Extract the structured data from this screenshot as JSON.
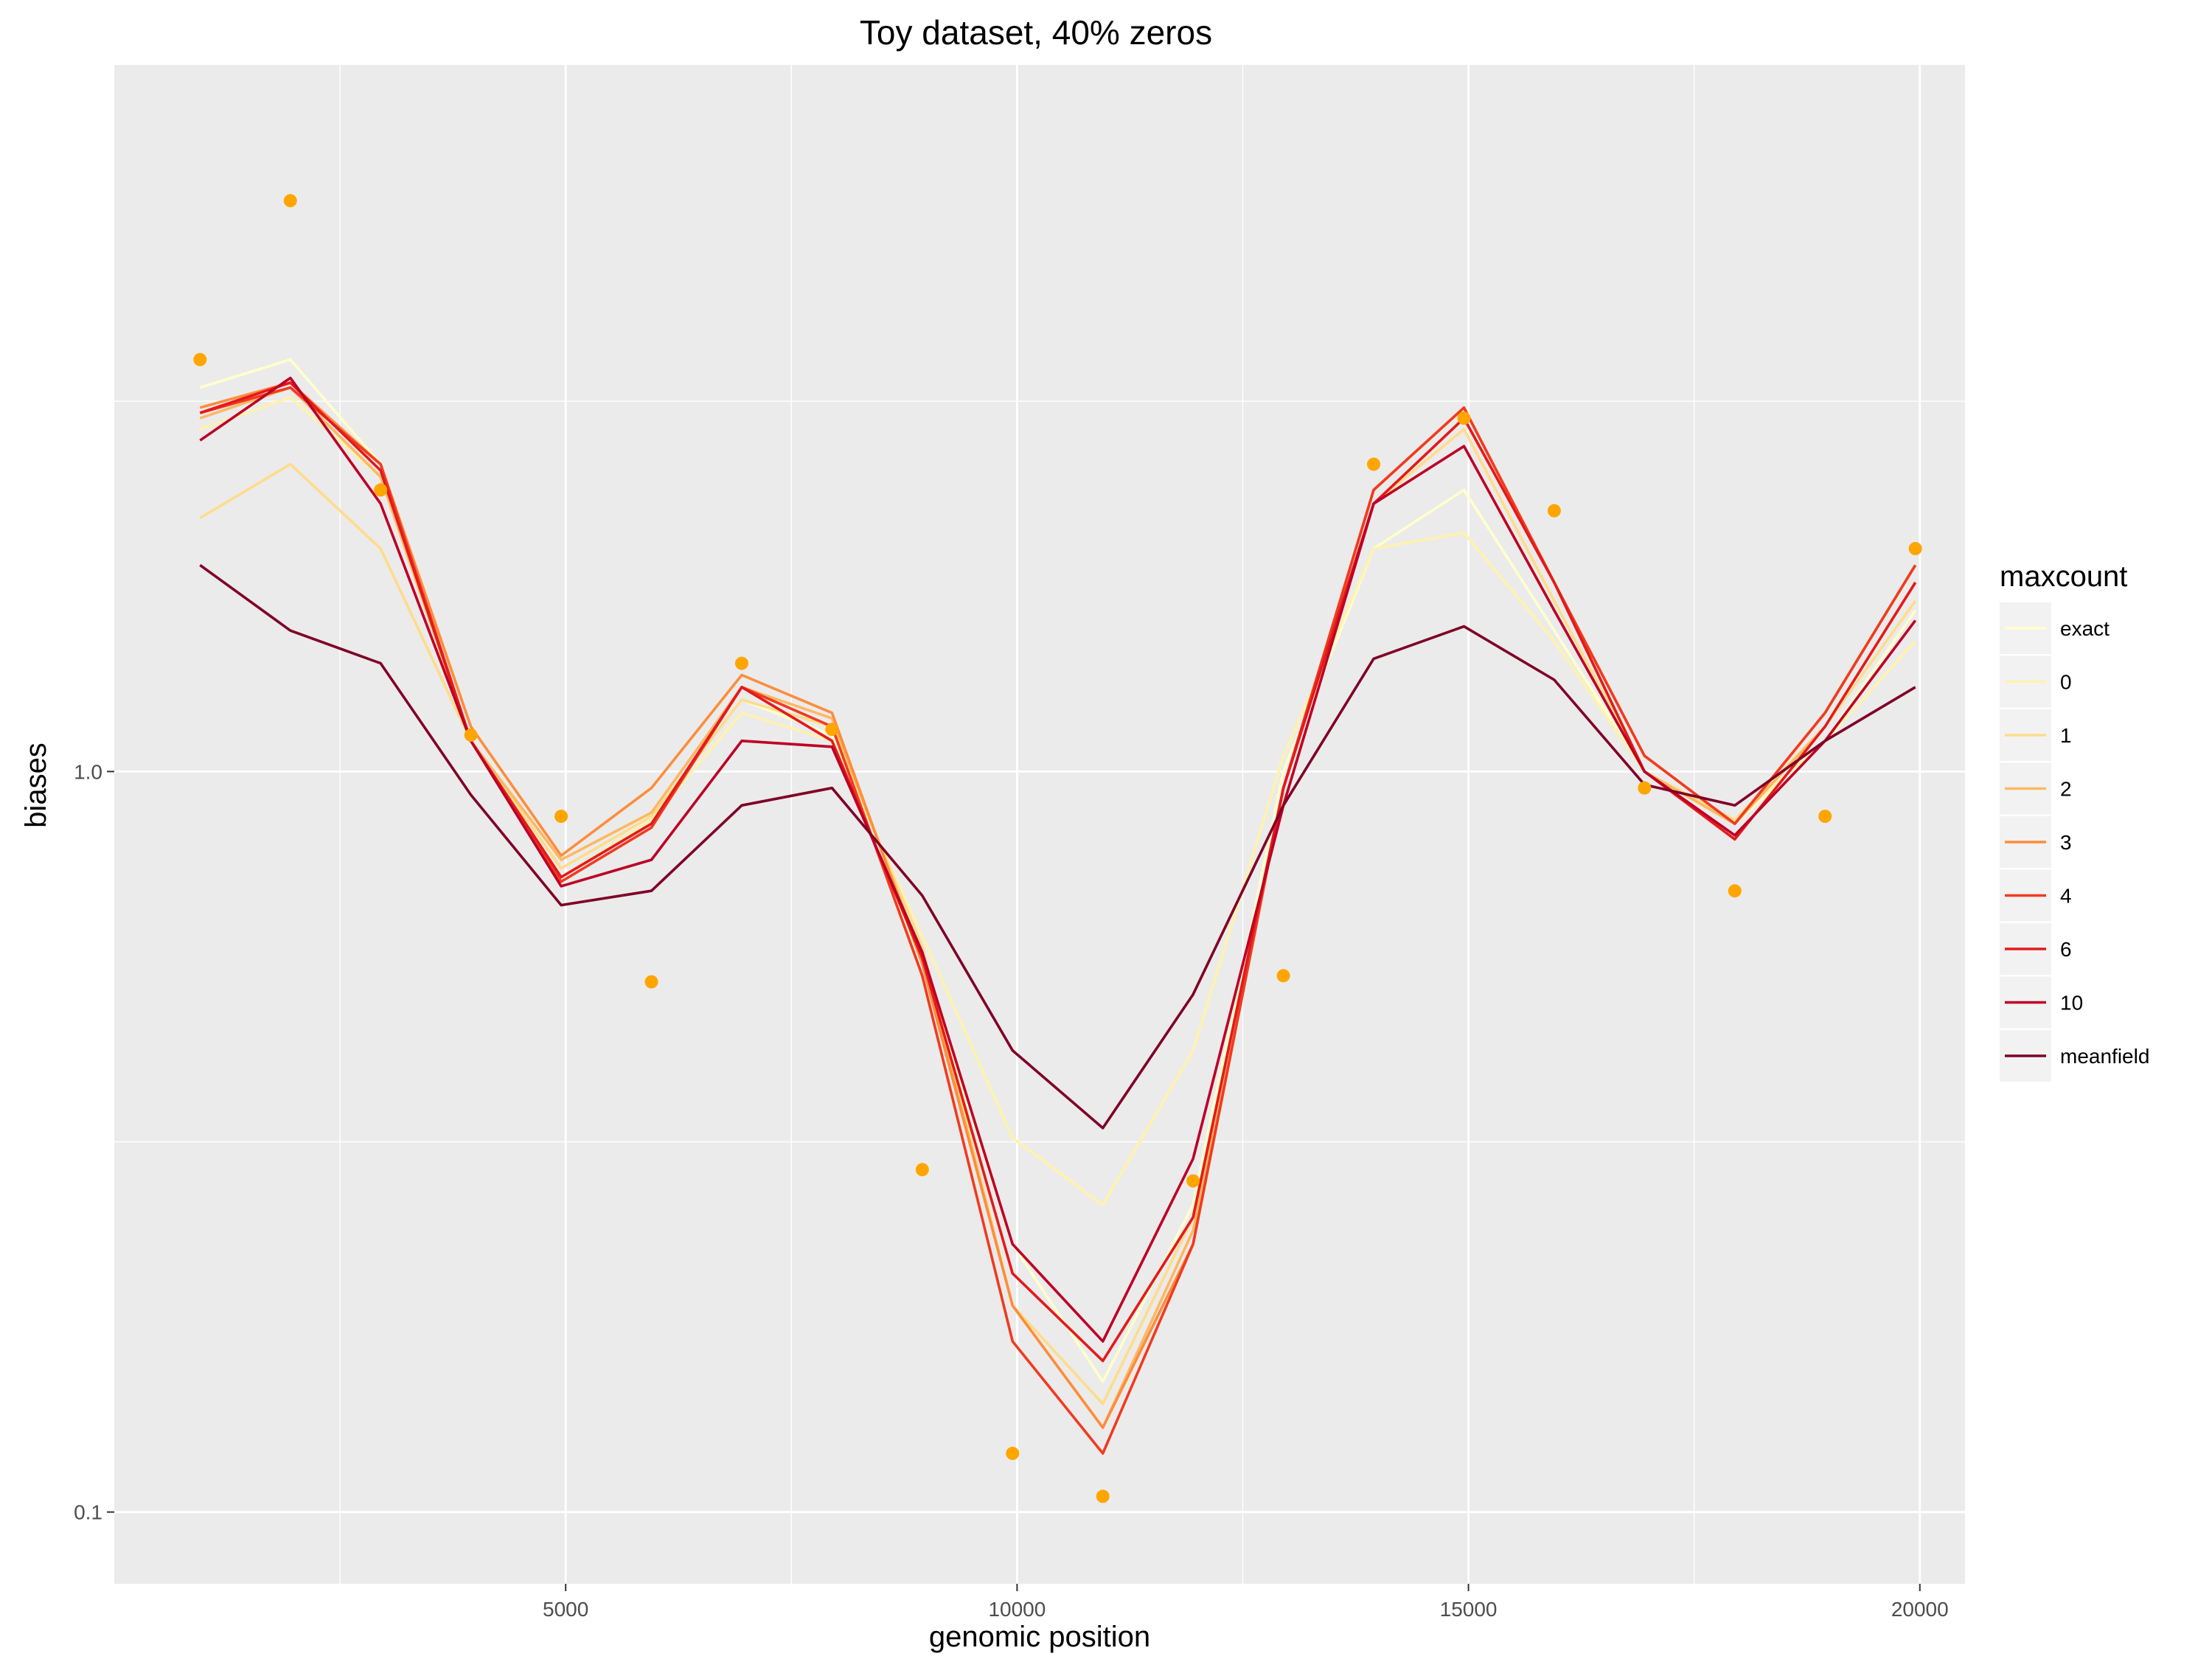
{
  "chart_data": {
    "type": "line",
    "title": "Toy dataset, 40% zeros",
    "xlabel": "genomic position",
    "ylabel": "biases",
    "y_scale": "log10",
    "xlim": [
      0,
      20500
    ],
    "ylim": [
      0.08,
      9.0
    ],
    "x_ticks": [
      5000,
      10000,
      15000,
      20000
    ],
    "x_tick_labels": [
      "5000",
      "10000",
      "15000",
      "20000"
    ],
    "y_ticks": [
      0.1,
      1.0
    ],
    "y_tick_labels": [
      "0.1",
      "1.0"
    ],
    "grid": true,
    "legend": {
      "title": "maxcount",
      "placement": "right"
    },
    "x": [
      950,
      1950,
      2950,
      3950,
      4950,
      5950,
      6950,
      7950,
      8950,
      9950,
      10950,
      11950,
      12950,
      13950,
      14950,
      15950,
      16950,
      17950,
      18950,
      19950
    ],
    "series": [
      {
        "name": "exact",
        "color": "#FFFFCC",
        "values": [
          3.3,
          3.6,
          2.6,
          1.1,
          0.74,
          0.87,
          1.25,
          1.12,
          0.55,
          0.23,
          0.15,
          0.26,
          1.0,
          2.0,
          2.4,
          1.55,
          1.0,
          0.85,
          1.1,
          1.65
        ]
      },
      {
        "name": "0",
        "color": "#FFF2AE",
        "values": [
          2.9,
          3.2,
          2.5,
          1.1,
          0.72,
          0.86,
          1.2,
          1.1,
          0.6,
          0.32,
          0.26,
          0.42,
          1.05,
          2.0,
          2.1,
          1.5,
          1.0,
          0.86,
          1.1,
          1.5
        ]
      },
      {
        "name": "1",
        "color": "#FEDC8A",
        "values": [
          2.2,
          2.6,
          2.0,
          1.1,
          0.74,
          0.87,
          1.25,
          1.15,
          0.58,
          0.19,
          0.14,
          0.25,
          0.95,
          2.3,
          2.9,
          1.7,
          1.0,
          0.86,
          1.15,
          1.7
        ]
      },
      {
        "name": "2",
        "color": "#FDB863",
        "values": [
          3.0,
          3.3,
          2.5,
          1.1,
          0.76,
          0.88,
          1.3,
          1.18,
          0.56,
          0.19,
          0.13,
          0.24,
          0.95,
          2.3,
          3.0,
          1.8,
          1.0,
          0.85,
          1.15,
          1.8
        ]
      },
      {
        "name": "3",
        "color": "#FD8D3C",
        "values": [
          3.1,
          3.35,
          2.6,
          1.15,
          0.77,
          0.95,
          1.35,
          1.2,
          0.55,
          0.19,
          0.13,
          0.23,
          0.95,
          2.4,
          3.1,
          1.8,
          1.05,
          0.85,
          1.2,
          1.9
        ]
      },
      {
        "name": "4",
        "color": "#F03B20",
        "values": [
          3.05,
          3.3,
          2.6,
          1.1,
          0.71,
          0.84,
          1.3,
          1.15,
          0.53,
          0.17,
          0.12,
          0.23,
          0.95,
          2.4,
          3.1,
          1.8,
          1.05,
          0.85,
          1.2,
          1.9
        ]
      },
      {
        "name": "6",
        "color": "#E31A1C",
        "values": [
          3.05,
          3.35,
          2.55,
          1.1,
          0.72,
          0.85,
          1.3,
          1.1,
          0.56,
          0.21,
          0.16,
          0.25,
          0.95,
          2.3,
          3.0,
          1.8,
          1.0,
          0.81,
          1.15,
          1.8
        ]
      },
      {
        "name": "10",
        "color": "#BD0026",
        "values": [
          2.8,
          3.4,
          2.3,
          1.1,
          0.7,
          0.76,
          1.1,
          1.08,
          0.57,
          0.23,
          0.17,
          0.3,
          0.9,
          2.3,
          2.75,
          1.65,
          1.0,
          0.82,
          1.1,
          1.6
        ]
      },
      {
        "name": "meanfield",
        "color": "#800026",
        "values": [
          1.9,
          1.55,
          1.4,
          0.93,
          0.66,
          0.69,
          0.9,
          0.95,
          0.68,
          0.42,
          0.33,
          0.5,
          0.9,
          1.42,
          1.57,
          1.33,
          0.96,
          0.9,
          1.1,
          1.3
        ]
      }
    ],
    "points": {
      "color": "#FFA500",
      "values": [
        3.6,
        5.9,
        2.4,
        1.12,
        0.87,
        0.52,
        1.4,
        1.14,
        0.29,
        0.12,
        0.105,
        0.28,
        0.53,
        2.6,
        3.0,
        2.25,
        0.95,
        0.69,
        0.87,
        2.0
      ]
    }
  }
}
